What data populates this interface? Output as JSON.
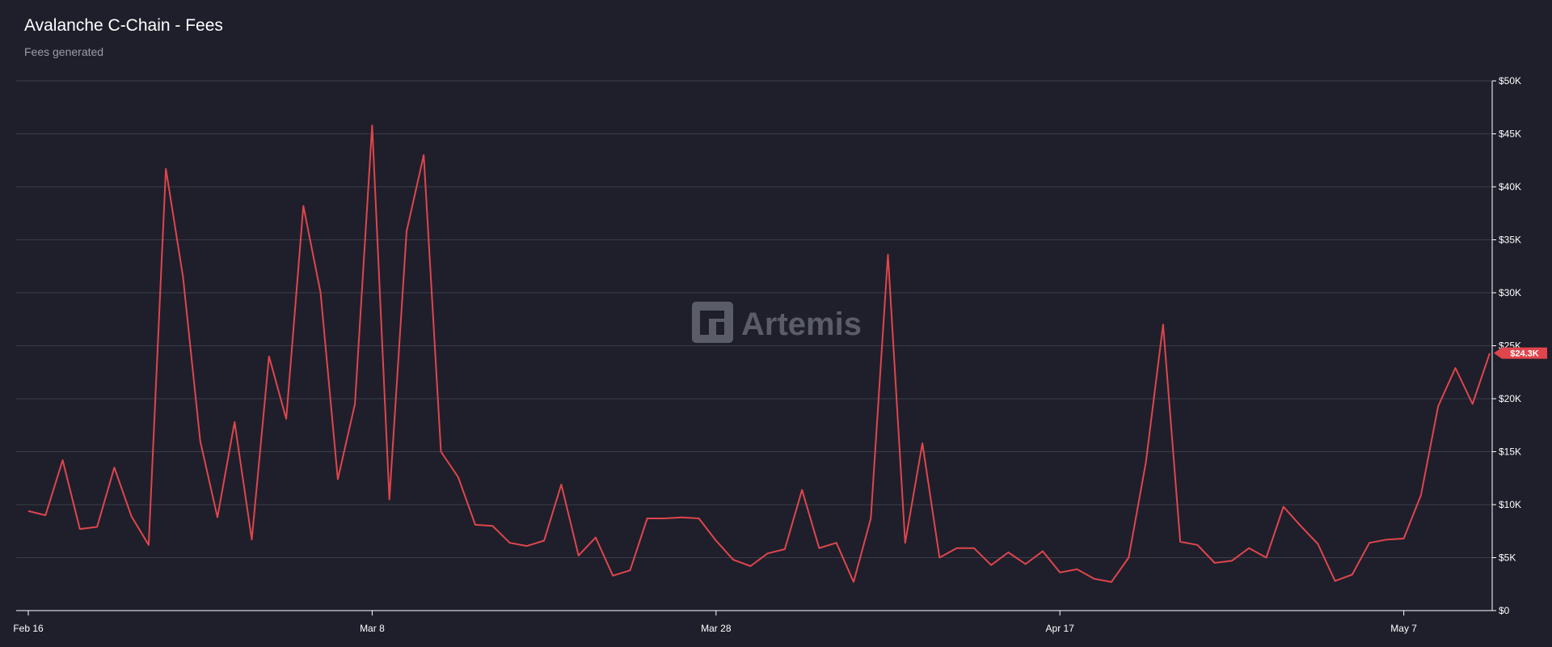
{
  "header": {
    "title": "Avalanche C-Chain - Fees",
    "subtitle": "Fees generated"
  },
  "watermark": {
    "text": "Artemis",
    "logo": "artemis-logo-icon"
  },
  "colors": {
    "background": "#1e1f2b",
    "line": "#e0454c",
    "grid": "#3a3c48",
    "axis": "#ffffff"
  },
  "chart_data": {
    "type": "line",
    "title": "Avalanche C-Chain - Fees",
    "subtitle": "Fees generated",
    "x_start": "Feb 16",
    "x_tick_labels": [
      {
        "label": "Feb 16",
        "index": 0
      },
      {
        "label": "Mar 8",
        "index": 20
      },
      {
        "label": "Mar 28",
        "index": 40
      },
      {
        "label": "Apr 17",
        "index": 60
      },
      {
        "label": "May 7",
        "index": 80
      }
    ],
    "y_ticks": [
      {
        "value": 0,
        "label": "$0"
      },
      {
        "value": 5000,
        "label": "$5K"
      },
      {
        "value": 10000,
        "label": "$10K"
      },
      {
        "value": 15000,
        "label": "$15K"
      },
      {
        "value": 20000,
        "label": "$20K"
      },
      {
        "value": 25000,
        "label": "$25K"
      },
      {
        "value": 30000,
        "label": "$30K"
      },
      {
        "value": 35000,
        "label": "$35K"
      },
      {
        "value": 40000,
        "label": "$40K"
      },
      {
        "value": 45000,
        "label": "$45K"
      },
      {
        "value": 50000,
        "label": "$50K"
      }
    ],
    "ylim": [
      0,
      50000
    ],
    "grid": true,
    "y_axis_side": "right",
    "last_value_label": "$24.3K",
    "series": [
      {
        "color": "#e0454c",
        "values": [
          9400,
          9000,
          14200,
          7700,
          7900,
          13500,
          8900,
          6200,
          41700,
          31500,
          16000,
          8800,
          17800,
          6700,
          24000,
          18100,
          38200,
          30000,
          12400,
          19500,
          45800,
          10500,
          35800,
          43000,
          15000,
          12600,
          8100,
          8000,
          6400,
          6100,
          6600,
          11900,
          5200,
          6900,
          3300,
          3800,
          8700,
          8700,
          8800,
          8700,
          6600,
          4800,
          4200,
          5400,
          5800,
          11400,
          5900,
          6400,
          2700,
          8700,
          33600,
          6400,
          15800,
          5000,
          5900,
          5900,
          4300,
          5500,
          4400,
          5600,
          3600,
          3900,
          3000,
          2700,
          5000,
          14000,
          27000,
          6500,
          6200,
          4500,
          4700,
          5900,
          5000,
          9800,
          8000,
          6300,
          2800,
          3400,
          6400,
          6700,
          6800,
          10900,
          19300,
          22900,
          19500,
          24300
        ]
      }
    ]
  }
}
